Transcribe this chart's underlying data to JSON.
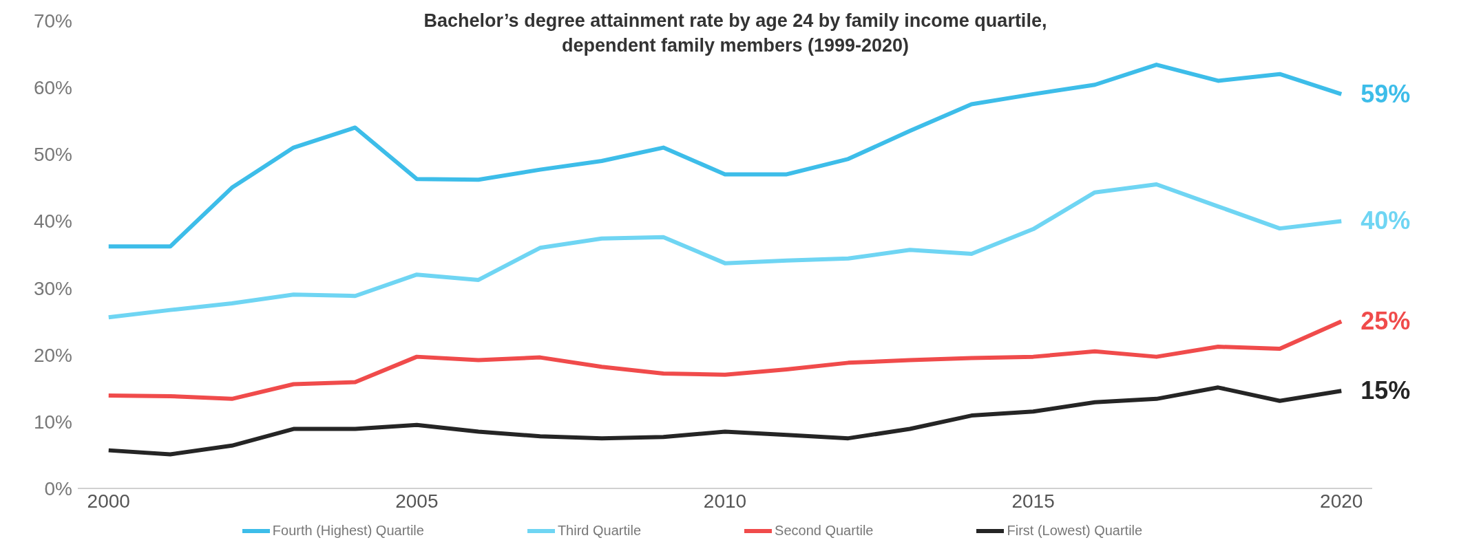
{
  "chart_data": {
    "type": "line",
    "title": "Bachelor’s degree attainment rate by age 24 by family income quartile, dependent family members (1999-2020)",
    "x": [
      2000,
      2001,
      2002,
      2003,
      2004,
      2005,
      2006,
      2007,
      2008,
      2009,
      2010,
      2011,
      2012,
      2013,
      2014,
      2015,
      2016,
      2017,
      2018,
      2019,
      2020
    ],
    "series": [
      {
        "name": "Fourth (Highest) Quartile",
        "color": "#3dbde9",
        "values": [
          36.2,
          36.2,
          45,
          51,
          54,
          46.3,
          46.2,
          47.7,
          49,
          51,
          47,
          47,
          49.3,
          53.5,
          57.5,
          59,
          60.4,
          63.4,
          61,
          62,
          59
        ],
        "value_labels": [
          null,
          null,
          null,
          null,
          null,
          null,
          null,
          null,
          null,
          null,
          null,
          null,
          null,
          null,
          null,
          null,
          null,
          null,
          null,
          null,
          "59%"
        ]
      },
      {
        "name": "Third Quartile",
        "color": "#6fd5f3",
        "values": [
          25.6,
          26.7,
          27.7,
          29,
          28.8,
          32,
          31.2,
          36,
          37.4,
          37.6,
          33.7,
          34.1,
          34.4,
          35.7,
          35.1,
          38.8,
          44.3,
          45.5,
          42.2,
          38.9,
          40
        ],
        "value_labels": [
          null,
          null,
          null,
          null,
          null,
          null,
          null,
          null,
          null,
          null,
          null,
          null,
          null,
          null,
          null,
          null,
          null,
          null,
          null,
          null,
          "40%"
        ]
      },
      {
        "name": "Second Quartile",
        "color": "#f04b4b",
        "values": [
          13.9,
          13.8,
          13.4,
          15.6,
          15.9,
          19.7,
          19.2,
          19.6,
          18.2,
          17.2,
          17,
          17.8,
          18.8,
          19.2,
          19.5,
          19.7,
          20.5,
          19.7,
          21.2,
          20.9,
          25
        ],
        "value_labels": [
          null,
          null,
          null,
          null,
          null,
          null,
          null,
          null,
          null,
          null,
          null,
          null,
          null,
          null,
          null,
          null,
          null,
          null,
          null,
          null,
          "25%"
        ]
      },
      {
        "name": "First (Lowest) Quartile",
        "color": "#252525",
        "values": [
          5.7,
          5.1,
          6.4,
          8.9,
          8.9,
          9.5,
          8.5,
          7.8,
          7.5,
          7.7,
          8.5,
          8,
          7.5,
          8.9,
          10.9,
          11.5,
          12.9,
          13.4,
          15.1,
          13.1,
          14.6
        ],
        "value_labels": [
          null,
          null,
          null,
          null,
          null,
          null,
          null,
          null,
          null,
          null,
          null,
          null,
          null,
          null,
          null,
          null,
          null,
          null,
          null,
          null,
          "15%"
        ]
      }
    ],
    "xlim": [
      1999.5,
      2020.5
    ],
    "xticks": [
      2000,
      2005,
      2010,
      2015,
      2020
    ],
    "ylim": [
      0,
      70
    ],
    "yticks": [
      {
        "value": 0,
        "label": "0%"
      },
      {
        "value": 10,
        "label": "10%"
      },
      {
        "value": 20,
        "label": "20%"
      },
      {
        "value": 30,
        "label": "30%"
      },
      {
        "value": 40,
        "label": "40%"
      },
      {
        "value": 50,
        "label": "50%"
      },
      {
        "value": 60,
        "label": "60%"
      },
      {
        "value": 70,
        "label": "70%"
      }
    ],
    "grid": false,
    "legend": "bottom",
    "marker": "none",
    "line_style": "solid"
  }
}
